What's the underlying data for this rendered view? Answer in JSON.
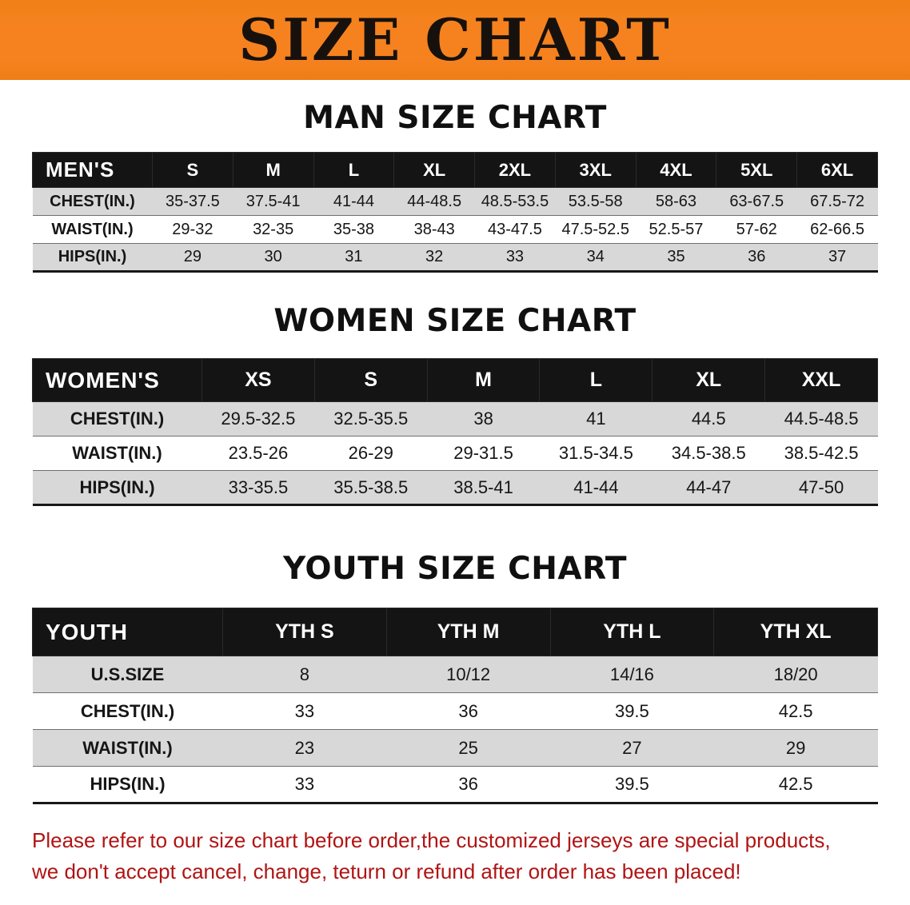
{
  "banner": {
    "title": "SIZE CHART"
  },
  "colors": {
    "banner_bg": "#f5821f",
    "header_bg": "#141414",
    "row_alt": "#d8d8d8",
    "footer_red": "#b11414"
  },
  "chart_data": [
    {
      "type": "table",
      "title": "MAN SIZE CHART",
      "header": [
        "MEN'S",
        "S",
        "M",
        "L",
        "XL",
        "2XL",
        "3XL",
        "4XL",
        "5XL",
        "6XL"
      ],
      "rows": [
        {
          "label": "CHEST(IN.)",
          "values": [
            "35-37.5",
            "37.5-41",
            "41-44",
            "44-48.5",
            "48.5-53.5",
            "53.5-58",
            "58-63",
            "63-67.5",
            "67.5-72"
          ]
        },
        {
          "label": "WAIST(IN.)",
          "values": [
            "29-32",
            "32-35",
            "35-38",
            "38-43",
            "43-47.5",
            "47.5-52.5",
            "52.5-57",
            "57-62",
            "62-66.5"
          ]
        },
        {
          "label": "HIPS(IN.)",
          "values": [
            "29",
            "30",
            "31",
            "32",
            "33",
            "34",
            "35",
            "36",
            "37"
          ]
        }
      ]
    },
    {
      "type": "table",
      "title": "WOMEN SIZE CHART",
      "header": [
        "WOMEN'S",
        "XS",
        "S",
        "M",
        "L",
        "XL",
        "XXL"
      ],
      "rows": [
        {
          "label": "CHEST(IN.)",
          "values": [
            "29.5-32.5",
            "32.5-35.5",
            "38",
            "41",
            "44.5",
            "44.5-48.5"
          ]
        },
        {
          "label": "WAIST(IN.)",
          "values": [
            "23.5-26",
            "26-29",
            "29-31.5",
            "31.5-34.5",
            "34.5-38.5",
            "38.5-42.5"
          ]
        },
        {
          "label": "HIPS(IN.)",
          "values": [
            "33-35.5",
            "35.5-38.5",
            "38.5-41",
            "41-44",
            "44-47",
            "47-50"
          ]
        }
      ]
    },
    {
      "type": "table",
      "title": "YOUTH SIZE CHART",
      "header": [
        "YOUTH",
        "YTH S",
        "YTH M",
        "YTH L",
        "YTH XL"
      ],
      "rows": [
        {
          "label": "U.S.SIZE",
          "values": [
            "8",
            "10/12",
            "14/16",
            "18/20"
          ]
        },
        {
          "label": "CHEST(IN.)",
          "values": [
            "33",
            "36",
            "39.5",
            "42.5"
          ]
        },
        {
          "label": "WAIST(IN.)",
          "values": [
            "23",
            "25",
            "27",
            "29"
          ]
        },
        {
          "label": "HIPS(IN.)",
          "values": [
            "33",
            "36",
            "39.5",
            "42.5"
          ]
        }
      ]
    }
  ],
  "footer": {
    "line1": "Please refer to our size chart before order,the customized jerseys are special products,",
    "line2": "we don't accept cancel, change, teturn or refund after order has been placed!"
  }
}
